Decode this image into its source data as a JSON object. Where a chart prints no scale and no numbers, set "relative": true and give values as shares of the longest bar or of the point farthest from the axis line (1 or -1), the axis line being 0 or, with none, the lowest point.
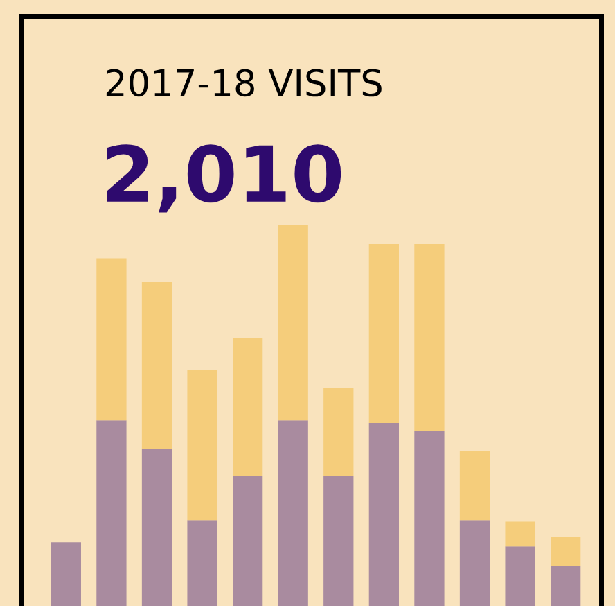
{
  "chart_data": {
    "type": "bar",
    "title": "2017-18 VISITS",
    "subtitle": "2,010",
    "relative": true,
    "stacked": true,
    "categories": [
      null,
      null,
      null,
      null,
      null,
      null,
      null,
      null,
      null,
      null,
      null,
      null
    ],
    "series": [
      {
        "color": "#a98b9f",
        "values": [
          0.167,
          0.487,
          0.411,
          0.225,
          0.342,
          0.487,
          0.342,
          0.48,
          0.458,
          0.225,
          0.156,
          0.105
        ]
      },
      {
        "color": "#f5cd7b",
        "values": [
          0,
          0.425,
          0.44,
          0.393,
          0.36,
          0.513,
          0.229,
          0.469,
          0.491,
          0.182,
          0.065,
          0.076
        ]
      }
    ]
  }
}
